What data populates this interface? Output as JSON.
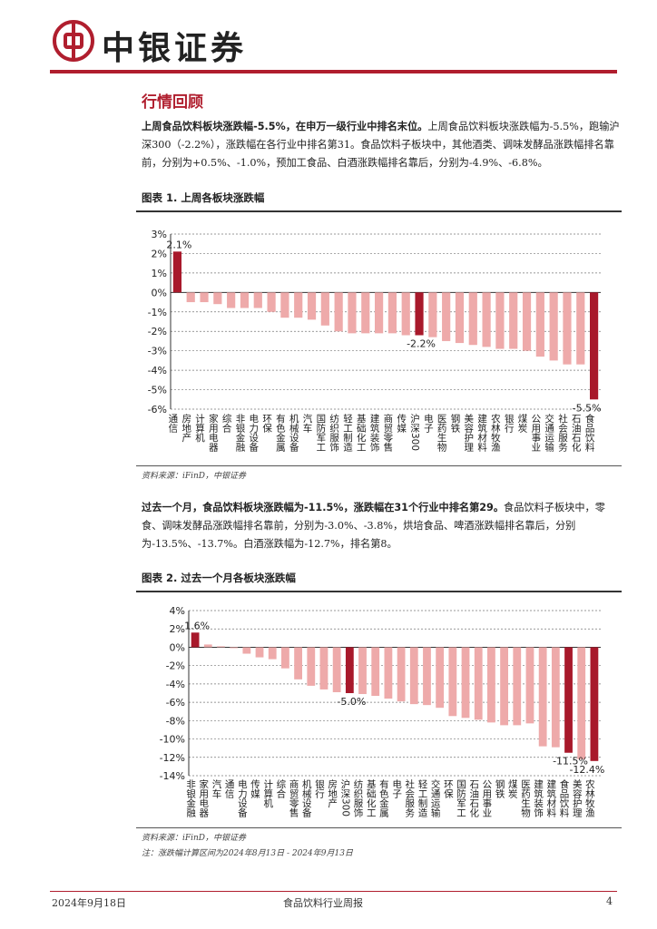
{
  "header": {
    "brand": "中银证券"
  },
  "section_title": "行情回顾",
  "para1": {
    "bold": "上周食品饮料板块涨跌幅-5.5%，在申万一级行业中排名末位。",
    "text": "上周食品饮料板块涨跌幅为-5.5%，跑输沪深300（-2.2%），涨跌幅在各行业中排名第31。食品饮料子板块中，其他酒类、调味发酵品涨跌幅排名靠前，分别为+0.5%、-1.0%，预加工食品、白酒涨跌幅排名靠后，分别为-4.9%、-6.8%。"
  },
  "fig1": {
    "title": "图表 1. 上周各板块涨跌幅",
    "source": "资料来源：iFinD，中银证券"
  },
  "para2": {
    "bold": "过去一个月，食品饮料板块涨跌幅为-11.5%，涨跌幅在31个行业中排名第29。",
    "text": "食品饮料子板块中，零食、调味发酵品涨跌幅排名靠前，分别为-3.0%、-3.8%，烘培食品、啤酒涨跌幅排名靠后，分别为-13.5%、-13.7%。白酒涨跌幅为-12.7%，排名第8。"
  },
  "fig2": {
    "title": "图表 2. 过去一个月各板块涨跌幅",
    "source": "资料来源：iFinD，中银证券",
    "note": "注：涨跌幅计算区间为2024年8月13日 - 2024年9月13日"
  },
  "footer": {
    "date": "2024年9月18日",
    "title": "食品饮料行业周报",
    "page": "4"
  },
  "colors": {
    "brand_red": "#b01e2e",
    "bar_light": "#eeaaaa",
    "bar_dark": "#a8192b"
  },
  "chart_data": [
    {
      "type": "bar",
      "title": "",
      "ylim": [
        -6,
        3
      ],
      "yticks": [
        3,
        2,
        1,
        0,
        -1,
        -2,
        -3,
        -4,
        -5,
        -6
      ],
      "ytick_format": "percent",
      "grid": true,
      "categories": [
        "通信",
        "房地产",
        "计算机",
        "家用电器",
        "综合",
        "非银金融",
        "电力设备",
        "环保",
        "有色金属",
        "机械设备",
        "汽车",
        "国防军工",
        "纺织服饰",
        "轻工制造",
        "基础化工",
        "建筑装饰",
        "商贸零售",
        "传媒",
        "沪深300",
        "电子",
        "医药生物",
        "钢铁",
        "美容护理",
        "建筑材料",
        "农林牧渔",
        "银行",
        "煤炭",
        "公用事业",
        "交通运输",
        "社会服务",
        "石油石化",
        "食品饮料"
      ],
      "values": [
        2.1,
        -0.5,
        -0.5,
        -0.6,
        -0.8,
        -0.8,
        -0.8,
        -1.0,
        -1.3,
        -1.3,
        -1.4,
        -1.7,
        -2.0,
        -2.1,
        -2.1,
        -2.1,
        -2.1,
        -2.2,
        -2.2,
        -2.3,
        -2.5,
        -2.6,
        -2.7,
        -2.8,
        -2.9,
        -2.9,
        -3.0,
        -3.3,
        -3.5,
        -3.7,
        -3.7,
        -5.5
      ],
      "highlight": [
        "通信",
        "沪深300",
        "食品饮料"
      ],
      "data_labels": [
        {
          "category": "通信",
          "text": "2.1%"
        },
        {
          "category": "沪深300",
          "text": "-2.2%"
        },
        {
          "category": "食品饮料",
          "text": "-5.5%"
        }
      ]
    },
    {
      "type": "bar",
      "title": "",
      "ylim": [
        -14,
        4
      ],
      "yticks": [
        4,
        2,
        0,
        -2,
        -4,
        -6,
        -8,
        -10,
        -12,
        -14
      ],
      "ytick_format": "percent",
      "grid": true,
      "categories": [
        "非银金融",
        "家用电器",
        "汽车",
        "通信",
        "电力设备",
        "传媒",
        "计算机",
        "综合",
        "商贸零售",
        "机械设备",
        "银行",
        "房地产",
        "沪深300",
        "纺织服饰",
        "基础化工",
        "有色金属",
        "电子",
        "社会服务",
        "轻工制造",
        "交通运输",
        "环保",
        "国防军工",
        "石油石化",
        "公用事业",
        "钢铁",
        "煤炭",
        "医药生物",
        "建筑装饰",
        "建筑材料",
        "食品饮料",
        "美容护理",
        "农林牧渔"
      ],
      "values": [
        1.6,
        0.3,
        0.1,
        -0.1,
        -0.7,
        -1.1,
        -1.3,
        -2.3,
        -3.5,
        -4.2,
        -4.6,
        -4.9,
        -5.0,
        -5.1,
        -5.3,
        -5.6,
        -5.9,
        -6.2,
        -6.3,
        -6.6,
        -7.5,
        -7.7,
        -7.9,
        -8.2,
        -8.5,
        -8.5,
        -8.3,
        -10.8,
        -10.9,
        -11.5,
        -12.2,
        -12.4
      ],
      "highlight": [
        "非银金融",
        "沪深300",
        "食品饮料",
        "农林牧渔"
      ],
      "data_labels": [
        {
          "category": "非银金融",
          "text": "1.6%"
        },
        {
          "category": "沪深300",
          "text": "-5.0%"
        },
        {
          "category": "食品饮料",
          "text": "-11.5%"
        },
        {
          "category": "农林牧渔",
          "text": "-12.4%"
        }
      ]
    }
  ]
}
